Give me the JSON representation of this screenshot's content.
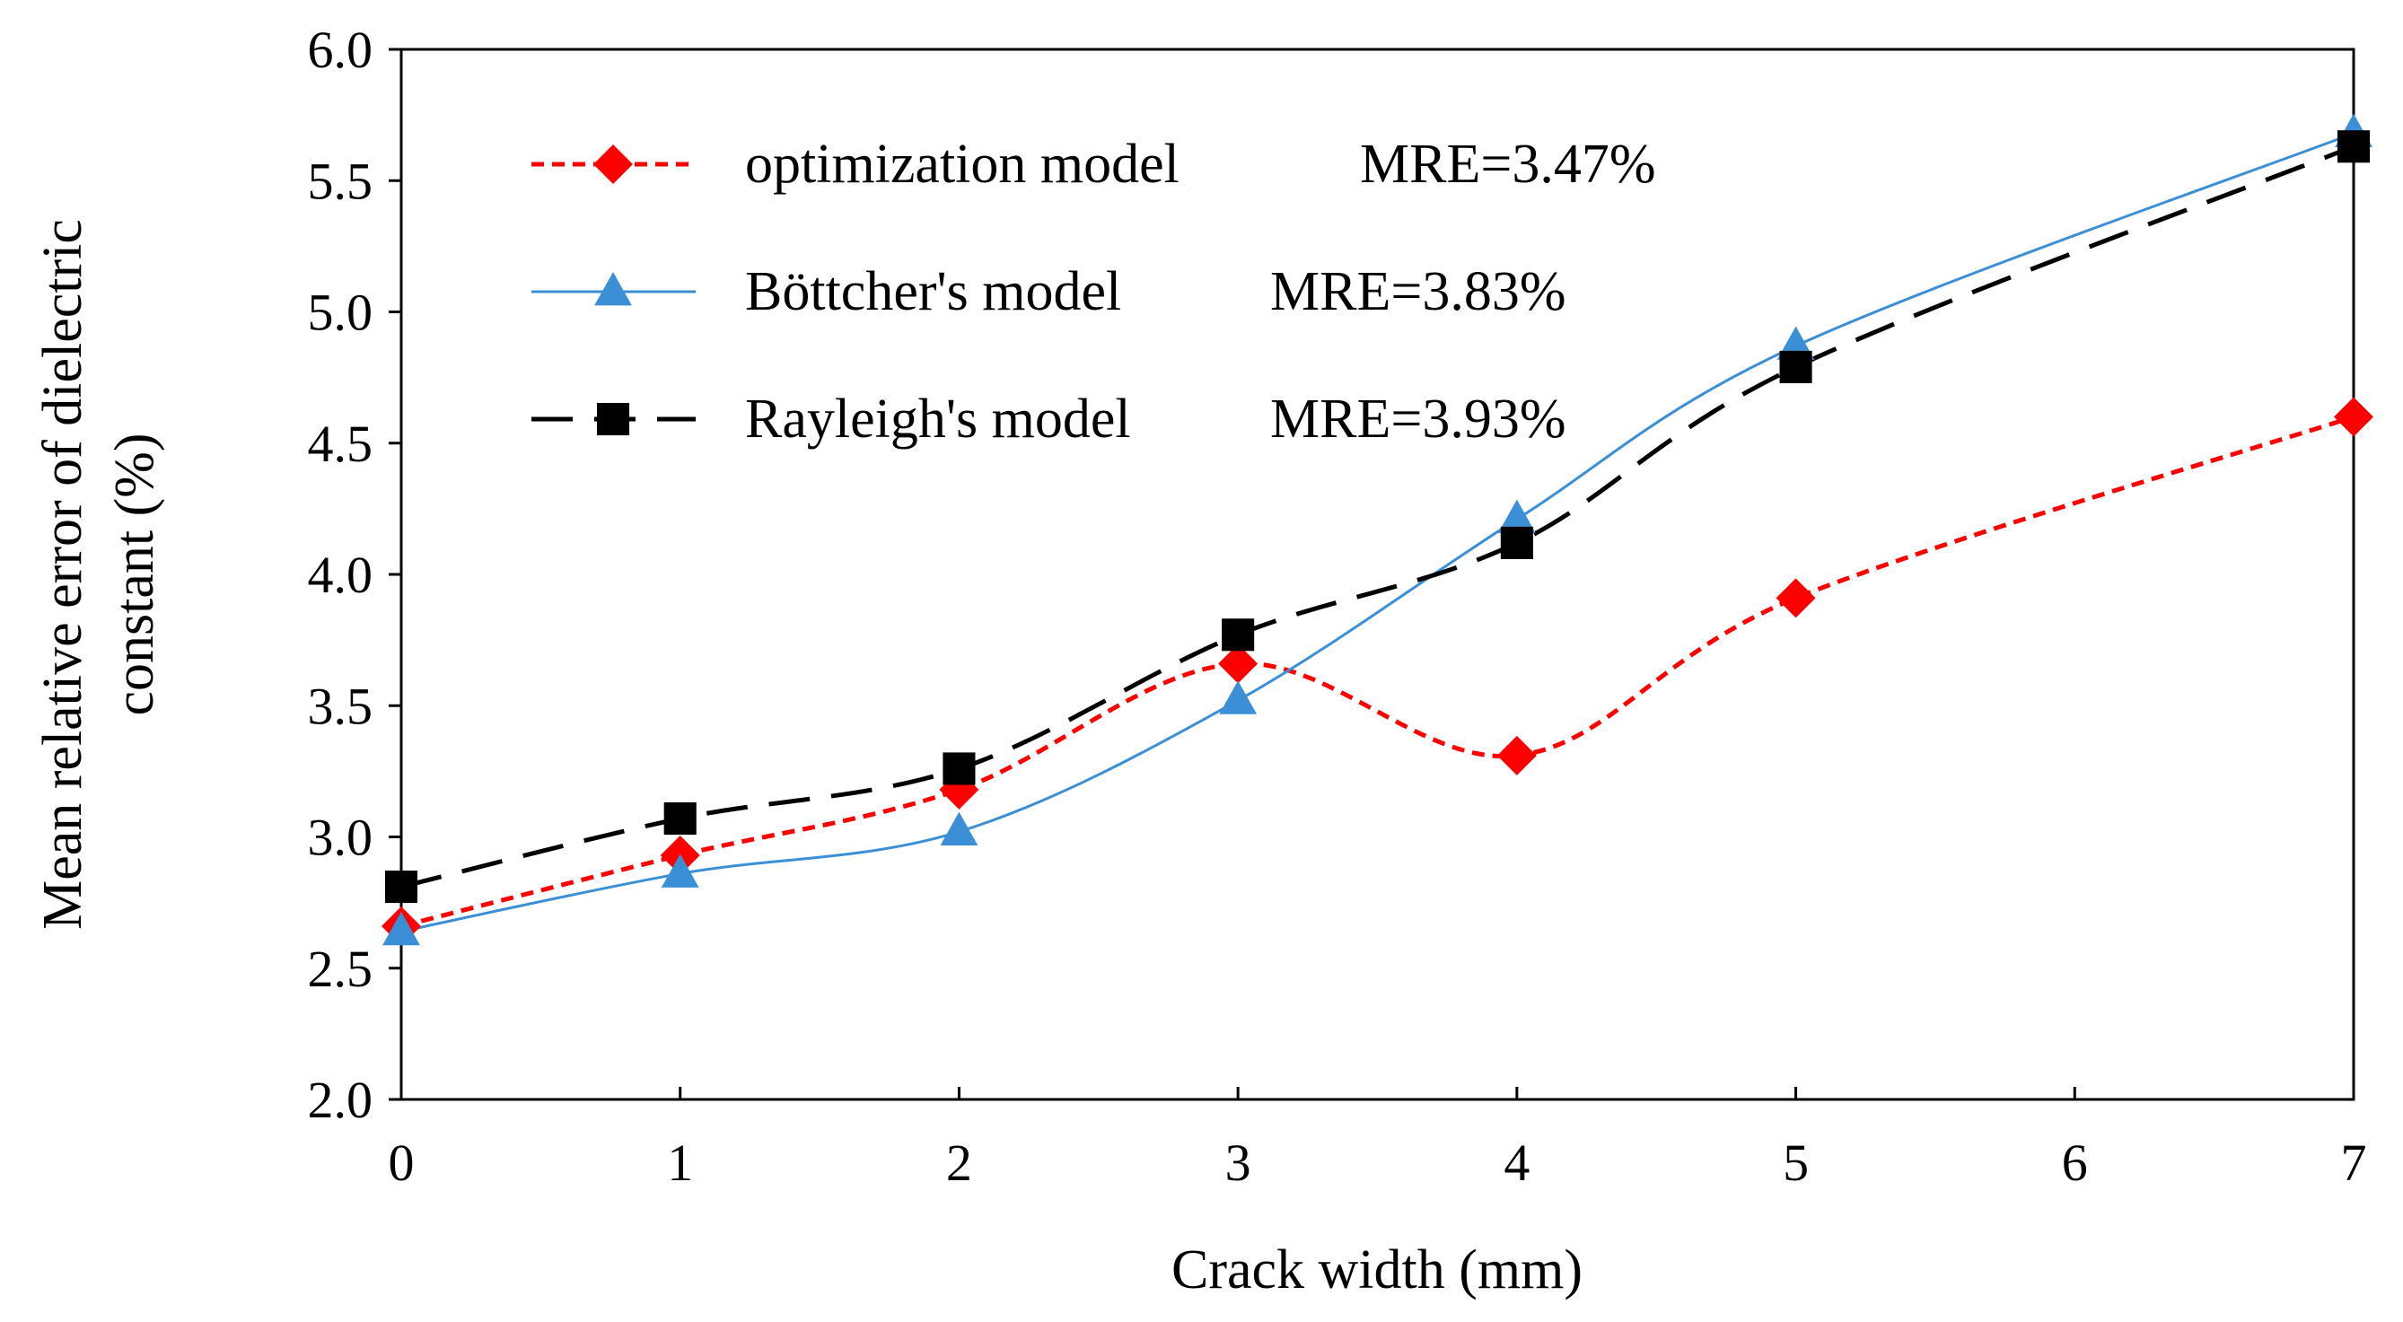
{
  "chart_data": {
    "type": "line",
    "title": "",
    "xlabel": "Crack width (mm)",
    "ylabel_lines": [
      "Mean relative error of dielectric",
      "constant (%)"
    ],
    "xlim": [
      0,
      7
    ],
    "ylim": [
      2.0,
      6.0
    ],
    "x_ticks": [
      "0",
      "1",
      "2",
      "3",
      "4",
      "5",
      "6",
      "7"
    ],
    "y_ticks": [
      "2.0",
      "2.5",
      "3.0",
      "3.5",
      "4.0",
      "4.5",
      "5.0",
      "5.5",
      "6.0"
    ],
    "grid": false,
    "legend_position": "top-left",
    "series": [
      {
        "name": "optimization model",
        "mre": "MRE=3.47%",
        "color": "#ff0000",
        "line_style": "dotted",
        "marker": "diamond",
        "x": [
          0,
          1,
          2,
          3,
          4,
          5,
          7
        ],
        "values": [
          2.66,
          2.93,
          3.18,
          3.66,
          3.31,
          3.91,
          4.6
        ]
      },
      {
        "name": "Böttcher's model",
        "mre": "MRE=3.83%",
        "color": "#3b8fd6",
        "line_style": "solid",
        "marker": "triangle",
        "x": [
          0,
          1,
          2,
          3,
          4,
          5,
          7
        ],
        "values": [
          2.64,
          2.86,
          3.02,
          3.52,
          4.21,
          4.87,
          5.68
        ]
      },
      {
        "name": "Rayleigh's model",
        "mre": "MRE=3.93%",
        "color": "#000000",
        "line_style": "dashed",
        "marker": "square",
        "x": [
          0,
          1,
          2,
          3,
          4,
          5,
          7
        ],
        "values": [
          2.81,
          3.07,
          3.26,
          3.77,
          4.12,
          4.79,
          5.63
        ]
      }
    ]
  }
}
